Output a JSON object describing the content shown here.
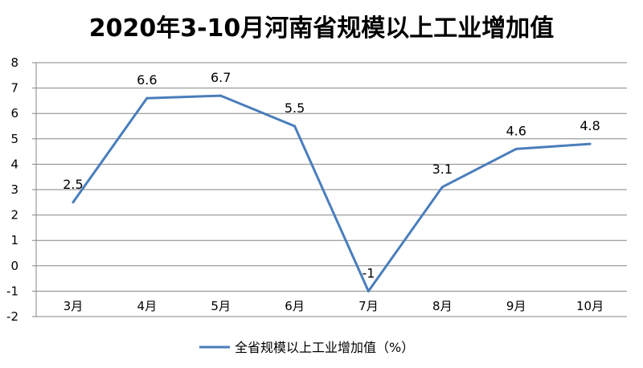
{
  "chart_data": {
    "type": "line",
    "title": "2020年3-10月河南省规模以上工业增加值",
    "categories": [
      "3月",
      "4月",
      "5月",
      "6月",
      "7月",
      "8月",
      "9月",
      "10月"
    ],
    "series": [
      {
        "name": "全省规模以上工业增加值（%）",
        "values": [
          2.5,
          6.6,
          6.7,
          5.5,
          -1,
          3.1,
          4.6,
          4.8
        ],
        "color": "#4a7ebb"
      }
    ],
    "data_labels": [
      "2.5",
      "6.6",
      "6.7",
      "5.5",
      "-1",
      "3.1",
      "4.6",
      "4.8"
    ],
    "ylim": [
      -2,
      8
    ],
    "yticks": [
      8,
      7,
      6,
      5,
      4,
      3,
      2,
      1,
      0,
      -1,
      -2
    ],
    "grid": true,
    "legend_position": "bottom"
  }
}
